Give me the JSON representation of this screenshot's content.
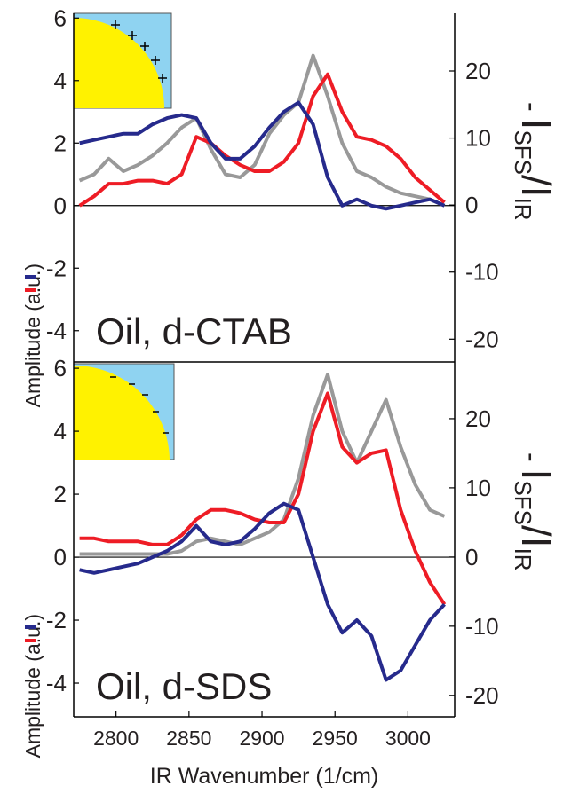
{
  "chart_data": [
    {
      "type": "line",
      "annotation": "Oil, d-CTAB",
      "ylabel": "Amplitude (a.u.)",
      "y2label": [
        "-",
        "I",
        "SFS",
        "/I",
        "IR"
      ],
      "x": [
        2775,
        2785,
        2795,
        2805,
        2815,
        2825,
        2835,
        2845,
        2855,
        2865,
        2875,
        2885,
        2895,
        2905,
        2915,
        2925,
        2935,
        2945,
        2955,
        2965,
        2975,
        2985,
        2995,
        3005,
        3015,
        3025
      ],
      "xlim": [
        2771,
        3032
      ],
      "ylim": [
        -5,
        6.15
      ],
      "yticks": [
        6,
        4,
        2,
        0,
        -2,
        -4
      ],
      "y2lim": [
        -23.4,
        28.6
      ],
      "y2ticks": [
        20,
        10,
        0,
        -10,
        -20
      ],
      "series": [
        {
          "color": "#999999",
          "values": [
            0.8,
            1.0,
            1.5,
            1.1,
            1.3,
            1.6,
            2.0,
            2.5,
            2.8,
            1.8,
            1.0,
            0.9,
            1.3,
            2.3,
            2.9,
            3.3,
            4.8,
            3.5,
            2.0,
            1.1,
            0.9,
            0.6,
            0.4,
            0.3,
            0.2,
            0.0
          ]
        },
        {
          "color": "#ee1c25",
          "values": [
            0.0,
            0.3,
            0.7,
            0.7,
            0.8,
            0.8,
            0.7,
            1.0,
            2.2,
            2.0,
            1.6,
            1.3,
            1.1,
            1.1,
            1.4,
            2.0,
            3.5,
            4.2,
            3.0,
            2.2,
            2.1,
            1.9,
            1.5,
            0.9,
            0.5,
            0.1
          ]
        },
        {
          "color": "#262a8c",
          "values": [
            2.0,
            2.1,
            2.2,
            2.3,
            2.3,
            2.6,
            2.8,
            2.9,
            2.8,
            2.0,
            1.5,
            1.5,
            1.9,
            2.5,
            3.0,
            3.3,
            2.6,
            0.9,
            0.0,
            0.2,
            0.0,
            -0.1,
            0.0,
            0.1,
            0.2,
            0.0
          ]
        }
      ]
    },
    {
      "type": "line",
      "annotation": "Oil, d-SDS",
      "ylabel": "Amplitude (a.u.)",
      "y2label": [
        "-",
        "I",
        "SFS",
        "/I",
        "IR"
      ],
      "xlabel": "IR Wavenumber (1/cm)",
      "x": [
        2775,
        2785,
        2795,
        2805,
        2815,
        2825,
        2835,
        2845,
        2855,
        2865,
        2875,
        2885,
        2895,
        2905,
        2915,
        2925,
        2935,
        2945,
        2955,
        2965,
        2975,
        2985,
        2995,
        3005,
        3015,
        3025
      ],
      "xlim": [
        2771,
        3032
      ],
      "xticks": [
        2800,
        2850,
        2900,
        2950,
        3000
      ],
      "ylim": [
        -5.07,
        6.2
      ],
      "yticks": [
        6,
        4,
        2,
        0,
        -2,
        -4
      ],
      "y2lim": [
        -23.1,
        28.2
      ],
      "y2ticks": [
        20,
        10,
        0,
        -10,
        -20
      ],
      "series": [
        {
          "color": "#999999",
          "values": [
            0.1,
            0.1,
            0.1,
            0.1,
            0.1,
            0.1,
            0.1,
            0.2,
            0.5,
            0.6,
            0.5,
            0.4,
            0.6,
            0.8,
            1.2,
            2.5,
            4.5,
            5.8,
            4.0,
            3.0,
            4.0,
            5.0,
            3.5,
            2.3,
            1.5,
            1.3
          ]
        },
        {
          "color": "#ee1c25",
          "values": [
            0.6,
            0.6,
            0.5,
            0.5,
            0.5,
            0.4,
            0.4,
            0.7,
            1.2,
            1.5,
            1.5,
            1.4,
            1.2,
            1.1,
            1.1,
            2.0,
            4.0,
            5.2,
            3.5,
            3.0,
            3.3,
            3.4,
            1.5,
            0.2,
            -0.8,
            -1.5
          ]
        },
        {
          "color": "#262a8c",
          "values": [
            -0.4,
            -0.5,
            -0.4,
            -0.3,
            -0.2,
            0.0,
            0.2,
            0.5,
            1.0,
            0.5,
            0.4,
            0.5,
            0.9,
            1.4,
            1.7,
            1.5,
            0.0,
            -1.5,
            -2.4,
            -2.0,
            -2.5,
            -3.9,
            -3.6,
            -2.8,
            -2.0,
            -1.5
          ]
        }
      ]
    }
  ]
}
